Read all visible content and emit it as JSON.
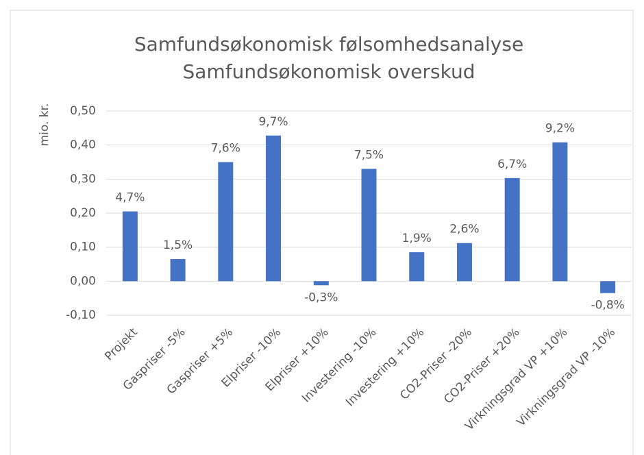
{
  "chart_data": {
    "type": "bar",
    "title": "Samfundsøkonomisk følsomhedsanalyse",
    "subtitle": "Samfundsøkonomisk overskud",
    "y_label": "mio. kr.",
    "categories": [
      "Projekt",
      "Gaspriser -5%",
      "Gaspriser +5%",
      "Elpriser -10%",
      "Elpriser +10%",
      "Investering -10%",
      "Investering +10%",
      "CO2-Priser -20%",
      "CO2-Priser +20%",
      "Virkningsgrad VP +10%",
      "Virkningsgrad VP -10%"
    ],
    "values": [
      0.205,
      0.065,
      0.35,
      0.428,
      -0.012,
      0.33,
      0.085,
      0.112,
      0.303,
      0.408,
      -0.035
    ],
    "data_labels": [
      "4,7%",
      "1,5%",
      "7,6%",
      "9,7%",
      "-0,3%",
      "7,5%",
      "1,9%",
      "2,6%",
      "6,7%",
      "9,2%",
      "-0,8%"
    ],
    "color": "#4472c4",
    "ylim": [
      -0.1,
      0.5
    ],
    "yticks": [
      {
        "value": -0.1,
        "label": "-0,10"
      },
      {
        "value": 0,
        "label": "0,00"
      },
      {
        "value": 0.1,
        "label": "0,10"
      },
      {
        "value": 0.2,
        "label": "0,20"
      },
      {
        "value": 0.3,
        "label": "0,30"
      },
      {
        "value": 0.4,
        "label": "0,40"
      },
      {
        "value": 0.5,
        "label": "0,50"
      }
    ],
    "grid": true
  }
}
